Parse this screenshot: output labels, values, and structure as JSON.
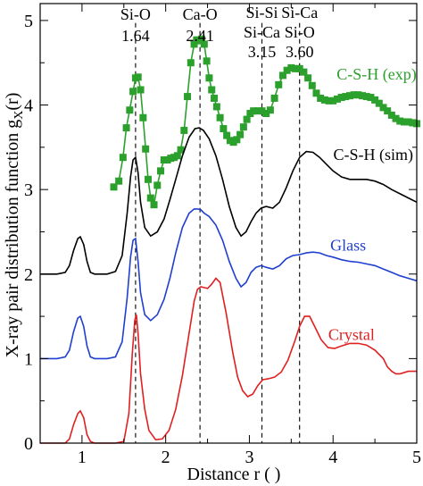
{
  "chart_data": {
    "type": "line",
    "xlabel": "Distance r (   )",
    "ylabel": "X-ray pair distribution function g",
    "ylabel_sub": "X",
    "ylabel_suffix": "(r)",
    "xlim": [
      0.5,
      5
    ],
    "ylim": [
      0,
      5.2
    ],
    "xticks": [
      "1",
      "2",
      "3",
      "4",
      "5"
    ],
    "yticks": [
      "0",
      "1",
      "2",
      "3",
      "4",
      "5"
    ],
    "grid": false,
    "vlines": [
      {
        "x": 1.64,
        "label_top": "Si-O",
        "label_bottom": "1.64"
      },
      {
        "x": 2.41,
        "label_top": "Ca-O",
        "label_bottom": "2.41"
      },
      {
        "x": 3.15,
        "label_top": "Si-Si",
        "label_mid": "Si-Ca",
        "label_bottom": "3.15"
      },
      {
        "x": 3.6,
        "label_top": "Si-Ca",
        "label_mid": "Si-O",
        "label_bottom": "3.60"
      }
    ],
    "series": [
      {
        "name": "C-S-H (exp)",
        "color": "#2ca02c",
        "marker": "square",
        "x": [
          1.38,
          1.44,
          1.49,
          1.53,
          1.57,
          1.61,
          1.64,
          1.67,
          1.7,
          1.73,
          1.76,
          1.79,
          1.82,
          1.86,
          1.9,
          1.94,
          1.98,
          2.02,
          2.06,
          2.1,
          2.14,
          2.18,
          2.22,
          2.26,
          2.3,
          2.34,
          2.37,
          2.4,
          2.43,
          2.46,
          2.49,
          2.52,
          2.55,
          2.58,
          2.61,
          2.65,
          2.69,
          2.73,
          2.77,
          2.81,
          2.85,
          2.89,
          2.93,
          2.97,
          3.01,
          3.05,
          3.1,
          3.15,
          3.2,
          3.25,
          3.3,
          3.35,
          3.4,
          3.45,
          3.5,
          3.55,
          3.6,
          3.65,
          3.7,
          3.75,
          3.8,
          3.85,
          3.9,
          3.95,
          4.0,
          4.05,
          4.1,
          4.15,
          4.2,
          4.25,
          4.3,
          4.35,
          4.4,
          4.45,
          4.5,
          4.55,
          4.6,
          4.65,
          4.7,
          4.75,
          4.8,
          4.85,
          4.9,
          4.95,
          5.0
        ],
        "y": [
          3.03,
          3.1,
          3.38,
          3.73,
          3.94,
          4.16,
          4.32,
          4.33,
          4.18,
          3.85,
          3.48,
          3.12,
          2.9,
          2.82,
          3.05,
          3.22,
          3.35,
          3.35,
          3.37,
          3.38,
          3.4,
          3.47,
          3.7,
          4.1,
          4.5,
          4.72,
          4.77,
          4.76,
          4.78,
          4.72,
          4.52,
          4.32,
          4.18,
          4.08,
          3.98,
          3.85,
          3.72,
          3.64,
          3.58,
          3.56,
          3.59,
          3.65,
          3.74,
          3.83,
          3.9,
          3.93,
          3.93,
          3.93,
          3.9,
          3.94,
          4.08,
          4.24,
          4.35,
          4.41,
          4.44,
          4.43,
          4.43,
          4.39,
          4.32,
          4.23,
          4.14,
          4.08,
          4.06,
          4.05,
          4.05,
          4.07,
          4.09,
          4.1,
          4.11,
          4.12,
          4.12,
          4.11,
          4.1,
          4.09,
          4.06,
          4.02,
          3.97,
          3.93,
          3.88,
          3.84,
          3.81,
          3.8,
          3.8,
          3.79,
          3.78
        ]
      },
      {
        "name": "C-S-H (sim)",
        "color": "#000000",
        "x": [
          0.5,
          0.6,
          0.7,
          0.8,
          0.85,
          0.9,
          0.95,
          0.98,
          1.02,
          1.06,
          1.1,
          1.15,
          1.2,
          1.3,
          1.4,
          1.48,
          1.54,
          1.58,
          1.61,
          1.64,
          1.67,
          1.7,
          1.75,
          1.82,
          1.9,
          1.98,
          2.05,
          2.12,
          2.2,
          2.28,
          2.35,
          2.4,
          2.45,
          2.52,
          2.6,
          2.68,
          2.76,
          2.84,
          2.9,
          2.96,
          3.02,
          3.08,
          3.14,
          3.2,
          3.28,
          3.36,
          3.44,
          3.52,
          3.6,
          3.68,
          3.76,
          3.84,
          3.92,
          4.0,
          4.1,
          4.2,
          4.3,
          4.4,
          4.5,
          4.6,
          4.7,
          4.8,
          4.9,
          5.0
        ],
        "y": [
          2.0,
          2.0,
          2.0,
          2.02,
          2.1,
          2.28,
          2.42,
          2.44,
          2.35,
          2.15,
          2.02,
          2.0,
          2.0,
          2.0,
          2.03,
          2.22,
          2.72,
          3.15,
          3.35,
          3.38,
          3.2,
          2.85,
          2.55,
          2.45,
          2.5,
          2.65,
          2.88,
          3.12,
          3.4,
          3.62,
          3.72,
          3.73,
          3.7,
          3.6,
          3.4,
          3.12,
          2.8,
          2.55,
          2.45,
          2.5,
          2.62,
          2.72,
          2.78,
          2.8,
          2.78,
          2.85,
          3.02,
          3.22,
          3.38,
          3.45,
          3.44,
          3.38,
          3.3,
          3.22,
          3.15,
          3.12,
          3.12,
          3.12,
          3.1,
          3.06,
          3.0,
          2.95,
          2.9,
          2.85
        ]
      },
      {
        "name": "Glass",
        "color": "#1f3fd0",
        "x": [
          0.5,
          0.6,
          0.7,
          0.8,
          0.85,
          0.9,
          0.95,
          0.98,
          1.02,
          1.06,
          1.1,
          1.15,
          1.2,
          1.3,
          1.4,
          1.48,
          1.54,
          1.58,
          1.61,
          1.64,
          1.67,
          1.7,
          1.75,
          1.82,
          1.9,
          1.98,
          2.05,
          2.12,
          2.2,
          2.28,
          2.34,
          2.38,
          2.42,
          2.46,
          2.52,
          2.6,
          2.68,
          2.76,
          2.84,
          2.9,
          2.96,
          3.02,
          3.08,
          3.14,
          3.2,
          3.28,
          3.36,
          3.44,
          3.52,
          3.6,
          3.68,
          3.76,
          3.84,
          3.92,
          4.0,
          4.1,
          4.2,
          4.3,
          4.4,
          4.5,
          4.6,
          4.7,
          4.8,
          4.9,
          5.0
        ],
        "y": [
          1.0,
          1.0,
          1.0,
          1.02,
          1.1,
          1.32,
          1.48,
          1.5,
          1.38,
          1.15,
          1.02,
          1.0,
          1.0,
          1.0,
          1.02,
          1.2,
          1.72,
          2.2,
          2.4,
          2.42,
          2.15,
          1.78,
          1.52,
          1.45,
          1.52,
          1.7,
          1.95,
          2.25,
          2.55,
          2.72,
          2.77,
          2.77,
          2.76,
          2.72,
          2.68,
          2.58,
          2.4,
          2.15,
          1.95,
          1.85,
          1.9,
          2.02,
          2.08,
          2.1,
          2.08,
          2.06,
          2.1,
          2.18,
          2.22,
          2.23,
          2.25,
          2.26,
          2.25,
          2.22,
          2.2,
          2.17,
          2.15,
          2.14,
          2.12,
          2.1,
          2.06,
          2.02,
          1.98,
          1.95,
          1.92
        ]
      },
      {
        "name": "Crystal",
        "color": "#e02020",
        "x": [
          0.5,
          0.6,
          0.7,
          0.8,
          0.85,
          0.9,
          0.95,
          0.98,
          1.02,
          1.06,
          1.1,
          1.15,
          1.2,
          1.3,
          1.4,
          1.5,
          1.56,
          1.6,
          1.63,
          1.65,
          1.67,
          1.7,
          1.75,
          1.8,
          1.88,
          1.96,
          2.04,
          2.12,
          2.2,
          2.28,
          2.34,
          2.38,
          2.42,
          2.46,
          2.5,
          2.55,
          2.6,
          2.65,
          2.72,
          2.8,
          2.86,
          2.92,
          2.98,
          3.04,
          3.1,
          3.16,
          3.22,
          3.3,
          3.38,
          3.46,
          3.54,
          3.6,
          3.66,
          3.72,
          3.78,
          3.86,
          3.94,
          4.02,
          4.1,
          4.2,
          4.3,
          4.4,
          4.5,
          4.6,
          4.65,
          4.7,
          4.75,
          4.8,
          4.9,
          5.0
        ],
        "y": [
          0.0,
          0.0,
          0.0,
          0.0,
          0.05,
          0.22,
          0.35,
          0.38,
          0.3,
          0.1,
          0.02,
          0.0,
          0.0,
          0.0,
          0.0,
          0.02,
          0.35,
          1.05,
          1.45,
          1.52,
          1.3,
          0.82,
          0.4,
          0.15,
          0.04,
          0.05,
          0.15,
          0.4,
          0.8,
          1.3,
          1.68,
          1.82,
          1.85,
          1.84,
          1.83,
          1.88,
          1.95,
          1.9,
          1.55,
          1.08,
          0.78,
          0.62,
          0.55,
          0.58,
          0.68,
          0.75,
          0.76,
          0.78,
          0.84,
          0.98,
          1.2,
          1.38,
          1.5,
          1.5,
          1.38,
          1.22,
          1.13,
          1.12,
          1.15,
          1.18,
          1.18,
          1.16,
          1.1,
          1.0,
          0.9,
          0.85,
          0.82,
          0.82,
          0.85,
          0.85
        ]
      }
    ]
  }
}
